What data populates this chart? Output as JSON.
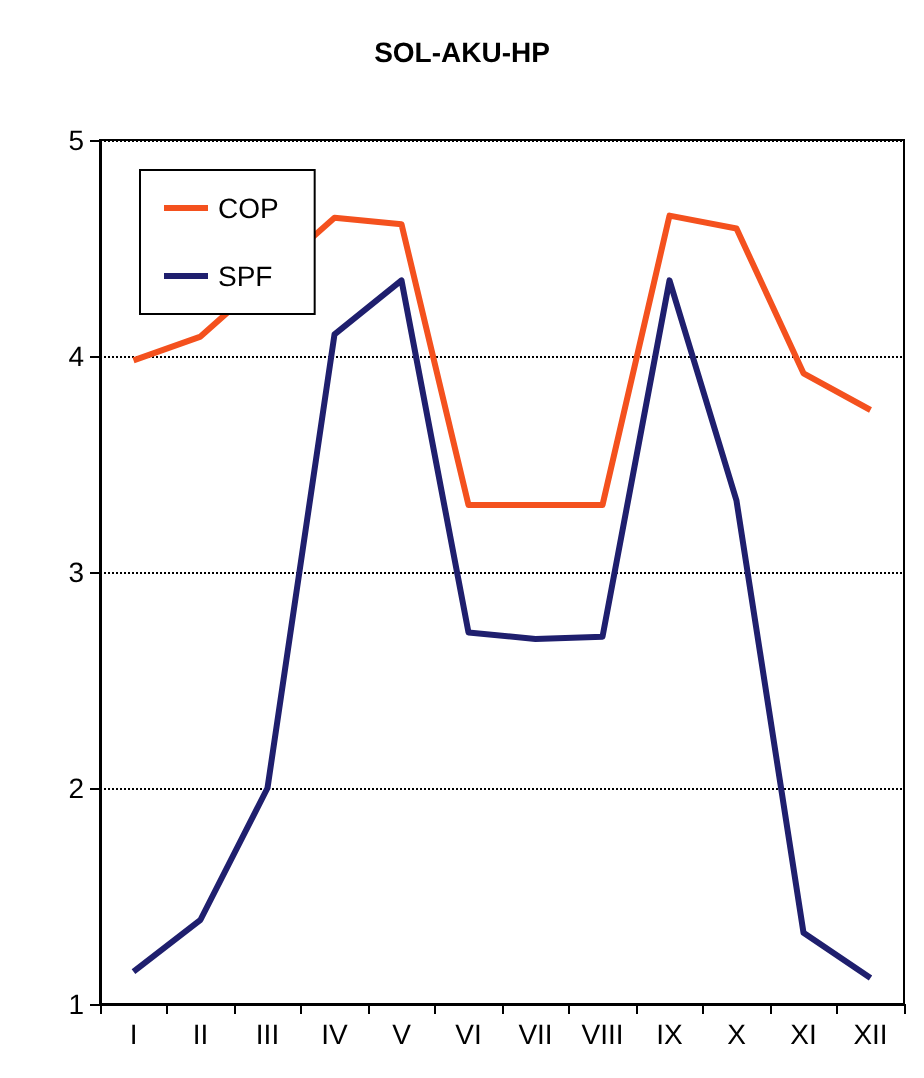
{
  "chart_data": {
    "type": "line",
    "title": "SOL-AKU-HP",
    "categories": [
      "I",
      "II",
      "III",
      "IV",
      "V",
      "VI",
      "VII",
      "VIII",
      "IX",
      "X",
      "XI",
      "XII"
    ],
    "series": [
      {
        "name": "COP",
        "color": "#f4511e",
        "values": [
          3.98,
          4.09,
          null,
          4.64,
          4.61,
          3.31,
          3.31,
          3.31,
          4.65,
          4.59,
          3.92,
          3.75
        ]
      },
      {
        "name": "SPF",
        "color": "#1f1f6e",
        "values": [
          1.15,
          1.39,
          2.0,
          4.1,
          4.35,
          2.72,
          2.69,
          2.7,
          4.35,
          3.33,
          1.33,
          1.12
        ]
      }
    ],
    "ylim": [
      1,
      5
    ],
    "yticks": [
      1,
      2,
      3,
      4,
      5
    ],
    "grid": "y",
    "legend": "top left",
    "marker": "none",
    "line_style": "solid"
  }
}
